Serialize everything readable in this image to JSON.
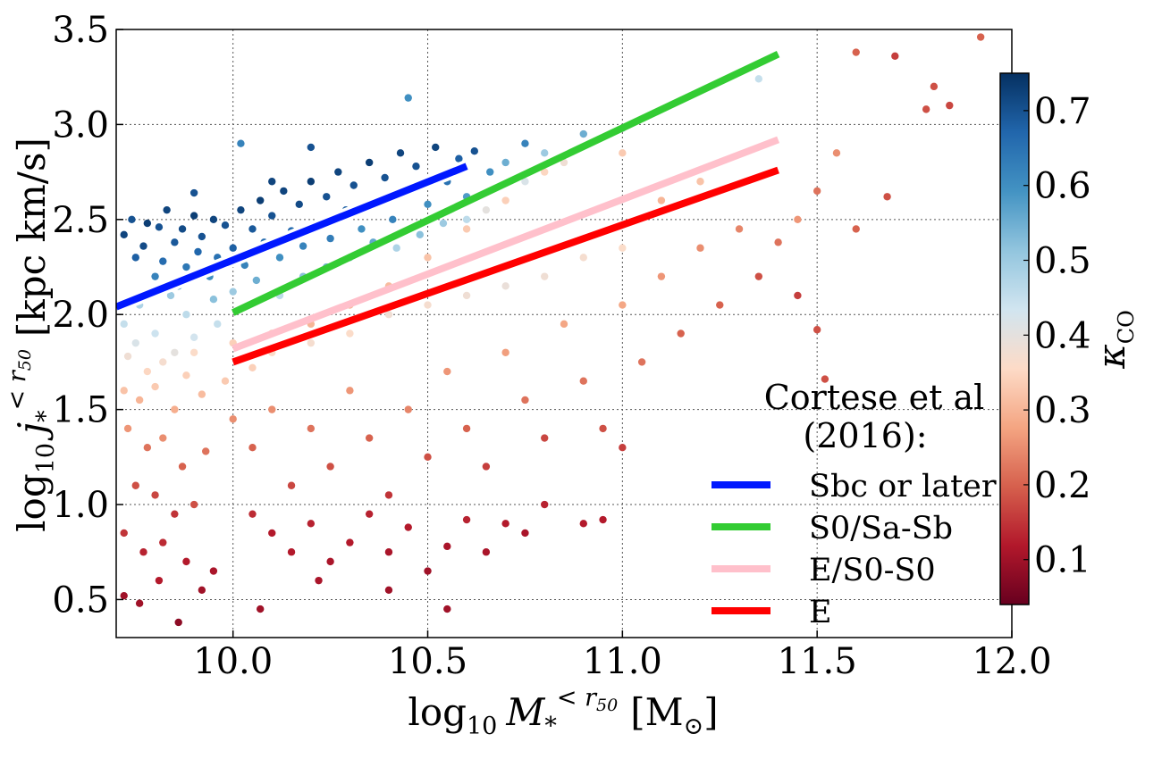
{
  "chart_data": {
    "type": "scatter",
    "xlabel_parts": {
      "pre": "log",
      "sub": "10",
      "sym": "M",
      "symsub": "*",
      "sup": "< r",
      "supsub": "50",
      "unit": "[M",
      "unitsub": "⊙",
      "close": "]"
    },
    "ylabel_parts": {
      "pre": "log",
      "sub": "10",
      "sym": "j",
      "symsub": "*",
      "sup": "< r",
      "supsub": "50",
      "unit": "[kpc km/s]"
    },
    "xlim": [
      9.7,
      12.0
    ],
    "ylim": [
      0.3,
      3.5
    ],
    "xticks": [
      "10.0",
      "10.5",
      "11.0",
      "11.5",
      "12.0"
    ],
    "xtick_values": [
      10.0,
      10.5,
      11.0,
      11.5,
      12.0
    ],
    "yticks": [
      "0.5",
      "1.0",
      "1.5",
      "2.0",
      "2.5",
      "3.0",
      "3.5"
    ],
    "ytick_values": [
      0.5,
      1.0,
      1.5,
      2.0,
      2.5,
      3.0,
      3.5
    ],
    "grid": true,
    "colorbar": {
      "label_sym": "κ",
      "label_sub": "CO",
      "min": 0.04,
      "max": 0.75,
      "ticks": [
        "0.1",
        "0.2",
        "0.3",
        "0.4",
        "0.5",
        "0.6",
        "0.7"
      ],
      "tick_values": [
        0.1,
        0.2,
        0.3,
        0.4,
        0.5,
        0.6,
        0.7
      ],
      "colors": [
        "#67001f",
        "#b2182b",
        "#d6604d",
        "#f4a582",
        "#fddbc7",
        "#d1e5f0",
        "#92c5de",
        "#4393c3",
        "#2166ac",
        "#053061"
      ]
    },
    "legend": {
      "title_line1": "Cortese et al",
      "title_line2": "(2016):",
      "placement": "lower-right"
    },
    "fit_lines": [
      {
        "name": "Sbc or later",
        "color": "#0018ff",
        "outline": true,
        "x": [
          9.7,
          10.6
        ],
        "y": [
          2.04,
          2.78
        ]
      },
      {
        "name": "S0/Sa-Sb",
        "color": "#33cc33",
        "outline": false,
        "x": [
          10.0,
          11.4
        ],
        "y": [
          2.01,
          3.37
        ]
      },
      {
        "name": "E/S0-S0",
        "color": "#ffc0cb",
        "outline": false,
        "x": [
          10.0,
          11.4
        ],
        "y": [
          1.82,
          2.92
        ]
      },
      {
        "name": "E",
        "color": "#ff0000",
        "outline": false,
        "x": [
          10.0,
          11.4
        ],
        "y": [
          1.75,
          2.76
        ]
      }
    ],
    "series": [
      {
        "name": "galaxies",
        "points": [
          [
            9.72,
            2.42,
            0.72
          ],
          [
            9.74,
            2.5,
            0.7
          ],
          [
            9.75,
            2.3,
            0.68
          ],
          [
            9.77,
            2.36,
            0.71
          ],
          [
            9.78,
            2.48,
            0.73
          ],
          [
            9.8,
            2.2,
            0.62
          ],
          [
            9.81,
            2.46,
            0.7
          ],
          [
            9.82,
            2.28,
            0.66
          ],
          [
            9.83,
            2.55,
            0.72
          ],
          [
            9.85,
            2.38,
            0.69
          ],
          [
            9.86,
            2.15,
            0.58
          ],
          [
            9.87,
            2.45,
            0.71
          ],
          [
            9.88,
            2.25,
            0.64
          ],
          [
            9.9,
            2.52,
            0.73
          ],
          [
            9.91,
            2.33,
            0.67
          ],
          [
            9.92,
            2.41,
            0.7
          ],
          [
            9.94,
            2.2,
            0.6
          ],
          [
            9.95,
            2.5,
            0.72
          ],
          [
            9.96,
            2.3,
            0.65
          ],
          [
            9.98,
            2.47,
            0.7
          ],
          [
            10.0,
            2.35,
            0.68
          ],
          [
            10.02,
            2.55,
            0.72
          ],
          [
            10.03,
            2.26,
            0.62
          ],
          [
            10.05,
            2.45,
            0.69
          ],
          [
            10.07,
            2.6,
            0.73
          ],
          [
            10.08,
            2.38,
            0.66
          ],
          [
            10.1,
            2.52,
            0.7
          ],
          [
            10.12,
            2.3,
            0.6
          ],
          [
            10.13,
            2.65,
            0.72
          ],
          [
            10.15,
            2.44,
            0.67
          ],
          [
            10.17,
            2.58,
            0.71
          ],
          [
            10.18,
            2.36,
            0.62
          ],
          [
            10.2,
            2.7,
            0.73
          ],
          [
            10.22,
            2.48,
            0.68
          ],
          [
            10.24,
            2.62,
            0.7
          ],
          [
            10.25,
            2.4,
            0.63
          ],
          [
            10.27,
            2.75,
            0.72
          ],
          [
            10.29,
            2.55,
            0.68
          ],
          [
            10.31,
            2.68,
            0.7
          ],
          [
            10.33,
            2.45,
            0.6
          ],
          [
            10.35,
            2.8,
            0.73
          ],
          [
            10.37,
            2.6,
            0.67
          ],
          [
            10.39,
            2.72,
            0.7
          ],
          [
            10.41,
            2.5,
            0.62
          ],
          [
            10.43,
            2.85,
            0.72
          ],
          [
            10.45,
            2.66,
            0.66
          ],
          [
            10.47,
            2.78,
            0.7
          ],
          [
            10.5,
            2.58,
            0.6
          ],
          [
            10.52,
            2.88,
            0.72
          ],
          [
            10.55,
            2.7,
            0.65
          ],
          [
            10.58,
            2.82,
            0.68
          ],
          [
            10.6,
            2.62,
            0.58
          ],
          [
            10.62,
            2.86,
            0.7
          ],
          [
            10.66,
            2.75,
            0.6
          ],
          [
            10.7,
            2.8,
            0.55
          ],
          [
            10.75,
            2.9,
            0.62
          ],
          [
            10.8,
            2.85,
            0.5
          ],
          [
            10.9,
            2.95,
            0.55
          ],
          [
            11.0,
            2.98,
            0.5
          ],
          [
            11.35,
            3.24,
            0.45
          ],
          [
            10.02,
            2.9,
            0.62
          ],
          [
            10.2,
            2.88,
            0.7
          ],
          [
            10.45,
            3.14,
            0.6
          ],
          [
            10.1,
            2.7,
            0.72
          ],
          [
            9.9,
            2.64,
            0.7
          ],
          [
            9.84,
            2.1,
            0.5
          ],
          [
            9.76,
            2.05,
            0.48
          ],
          [
            9.88,
            2.0,
            0.46
          ],
          [
            9.95,
            2.08,
            0.52
          ],
          [
            10.0,
            2.12,
            0.5
          ],
          [
            10.06,
            2.18,
            0.55
          ],
          [
            10.12,
            2.1,
            0.46
          ],
          [
            10.18,
            2.2,
            0.52
          ],
          [
            10.24,
            2.25,
            0.54
          ],
          [
            10.3,
            2.3,
            0.5
          ],
          [
            10.36,
            2.38,
            0.56
          ],
          [
            10.42,
            2.35,
            0.48
          ],
          [
            10.48,
            2.42,
            0.52
          ],
          [
            10.54,
            2.48,
            0.5
          ],
          [
            10.6,
            2.5,
            0.46
          ],
          [
            9.72,
            1.95,
            0.45
          ],
          [
            9.75,
            1.85,
            0.42
          ],
          [
            9.8,
            1.9,
            0.44
          ],
          [
            9.85,
            1.8,
            0.4
          ],
          [
            9.9,
            1.88,
            0.43
          ],
          [
            9.96,
            1.95,
            0.45
          ],
          [
            9.73,
            1.78,
            0.38
          ],
          [
            9.78,
            1.7,
            0.35
          ],
          [
            9.82,
            1.75,
            0.37
          ],
          [
            9.88,
            1.68,
            0.34
          ],
          [
            9.72,
            1.6,
            0.32
          ],
          [
            9.76,
            1.55,
            0.3
          ],
          [
            9.8,
            1.62,
            0.33
          ],
          [
            9.85,
            1.5,
            0.29
          ],
          [
            9.92,
            1.58,
            0.31
          ],
          [
            9.98,
            1.65,
            0.33
          ],
          [
            10.05,
            1.72,
            0.34
          ],
          [
            10.1,
            1.8,
            0.36
          ],
          [
            10.2,
            1.85,
            0.37
          ],
          [
            10.3,
            1.9,
            0.36
          ],
          [
            10.4,
            2.0,
            0.38
          ],
          [
            10.5,
            2.05,
            0.37
          ],
          [
            10.6,
            2.1,
            0.38
          ],
          [
            10.7,
            2.15,
            0.39
          ],
          [
            10.8,
            2.2,
            0.38
          ],
          [
            10.9,
            2.3,
            0.37
          ],
          [
            11.0,
            2.35,
            0.36
          ],
          [
            10.65,
            2.55,
            0.4
          ],
          [
            10.75,
            2.7,
            0.42
          ],
          [
            10.85,
            2.8,
            0.38
          ],
          [
            9.73,
            1.4,
            0.26
          ],
          [
            9.78,
            1.3,
            0.22
          ],
          [
            9.82,
            1.35,
            0.25
          ],
          [
            9.87,
            1.2,
            0.2
          ],
          [
            9.93,
            1.28,
            0.22
          ],
          [
            10.0,
            1.45,
            0.25
          ],
          [
            9.75,
            1.1,
            0.18
          ],
          [
            9.8,
            1.05,
            0.17
          ],
          [
            9.85,
            0.95,
            0.15
          ],
          [
            9.9,
            1.0,
            0.18
          ],
          [
            9.72,
            0.85,
            0.15
          ],
          [
            9.77,
            0.75,
            0.13
          ],
          [
            9.82,
            0.8,
            0.14
          ],
          [
            9.88,
            0.7,
            0.12
          ],
          [
            9.95,
            0.65,
            0.11
          ],
          [
            9.72,
            0.52,
            0.1
          ],
          [
            9.76,
            0.48,
            0.1
          ],
          [
            9.81,
            0.6,
            0.12
          ],
          [
            9.86,
            0.38,
            0.08
          ],
          [
            9.92,
            0.55,
            0.1
          ],
          [
            10.05,
            1.3,
            0.2
          ],
          [
            10.1,
            1.5,
            0.25
          ],
          [
            10.15,
            1.1,
            0.17
          ],
          [
            10.2,
            1.4,
            0.22
          ],
          [
            10.25,
            1.2,
            0.18
          ],
          [
            10.3,
            1.6,
            0.26
          ],
          [
            10.35,
            1.35,
            0.2
          ],
          [
            10.4,
            1.05,
            0.15
          ],
          [
            10.45,
            1.5,
            0.24
          ],
          [
            10.5,
            1.25,
            0.18
          ],
          [
            10.55,
            1.7,
            0.26
          ],
          [
            10.6,
            1.4,
            0.2
          ],
          [
            10.65,
            1.2,
            0.16
          ],
          [
            10.7,
            1.8,
            0.27
          ],
          [
            10.75,
            1.55,
            0.22
          ],
          [
            10.8,
            1.35,
            0.17
          ],
          [
            10.85,
            1.95,
            0.28
          ],
          [
            10.9,
            1.65,
            0.22
          ],
          [
            10.95,
            1.4,
            0.18
          ],
          [
            11.0,
            2.05,
            0.28
          ],
          [
            11.05,
            1.75,
            0.22
          ],
          [
            11.1,
            2.2,
            0.26
          ],
          [
            11.15,
            1.9,
            0.2
          ],
          [
            11.2,
            2.35,
            0.25
          ],
          [
            11.25,
            2.05,
            0.2
          ],
          [
            11.3,
            2.45,
            0.24
          ],
          [
            11.35,
            2.2,
            0.18
          ],
          [
            11.4,
            2.38,
            0.22
          ],
          [
            11.45,
            2.1,
            0.16
          ],
          [
            11.5,
            1.92,
            0.18
          ],
          [
            10.05,
            0.95,
            0.14
          ],
          [
            10.1,
            0.85,
            0.12
          ],
          [
            10.15,
            0.75,
            0.12
          ],
          [
            10.2,
            0.9,
            0.13
          ],
          [
            10.25,
            0.7,
            0.11
          ],
          [
            10.3,
            0.8,
            0.12
          ],
          [
            10.35,
            0.95,
            0.13
          ],
          [
            10.4,
            0.75,
            0.11
          ],
          [
            10.45,
            0.88,
            0.12
          ],
          [
            10.5,
            0.65,
            0.1
          ],
          [
            10.55,
            0.78,
            0.11
          ],
          [
            10.6,
            0.92,
            0.13
          ],
          [
            10.65,
            0.75,
            0.11
          ],
          [
            10.7,
            0.9,
            0.12
          ],
          [
            10.75,
            0.85,
            0.11
          ],
          [
            10.8,
            1.0,
            0.13
          ],
          [
            10.9,
            0.9,
            0.12
          ],
          [
            10.95,
            0.92,
            0.12
          ],
          [
            11.0,
            1.3,
            0.16
          ],
          [
            10.55,
            0.45,
            0.1
          ],
          [
            10.07,
            0.45,
            0.1
          ],
          [
            10.22,
            0.6,
            0.11
          ],
          [
            10.4,
            0.55,
            0.1
          ],
          [
            11.6,
            3.38,
            0.2
          ],
          [
            11.8,
            3.2,
            0.18
          ],
          [
            11.92,
            3.46,
            0.2
          ],
          [
            11.78,
            3.08,
            0.18
          ],
          [
            11.84,
            3.1,
            0.17
          ],
          [
            11.99,
            3.22,
            0.18
          ],
          [
            11.7,
            3.36,
            0.16
          ],
          [
            11.5,
            2.65,
            0.22
          ],
          [
            11.55,
            2.85,
            0.25
          ],
          [
            11.68,
            2.62,
            0.18
          ],
          [
            11.52,
            1.66,
            0.18
          ],
          [
            11.6,
            2.45,
            0.2
          ],
          [
            11.45,
            2.5,
            0.26
          ],
          [
            11.1,
            2.6,
            0.3
          ],
          [
            11.2,
            2.7,
            0.32
          ],
          [
            11.0,
            2.85,
            0.33
          ],
          [
            10.9,
            2.95,
            0.34
          ],
          [
            10.8,
            2.75,
            0.35
          ],
          [
            10.7,
            2.6,
            0.34
          ],
          [
            10.6,
            2.45,
            0.33
          ],
          [
            10.5,
            2.3,
            0.32
          ],
          [
            10.4,
            2.15,
            0.31
          ],
          [
            10.3,
            2.05,
            0.3
          ],
          [
            10.2,
            1.95,
            0.3
          ],
          [
            10.1,
            1.9,
            0.32
          ],
          [
            10.0,
            1.85,
            0.34
          ],
          [
            9.9,
            1.8,
            0.36
          ]
        ]
      }
    ]
  }
}
